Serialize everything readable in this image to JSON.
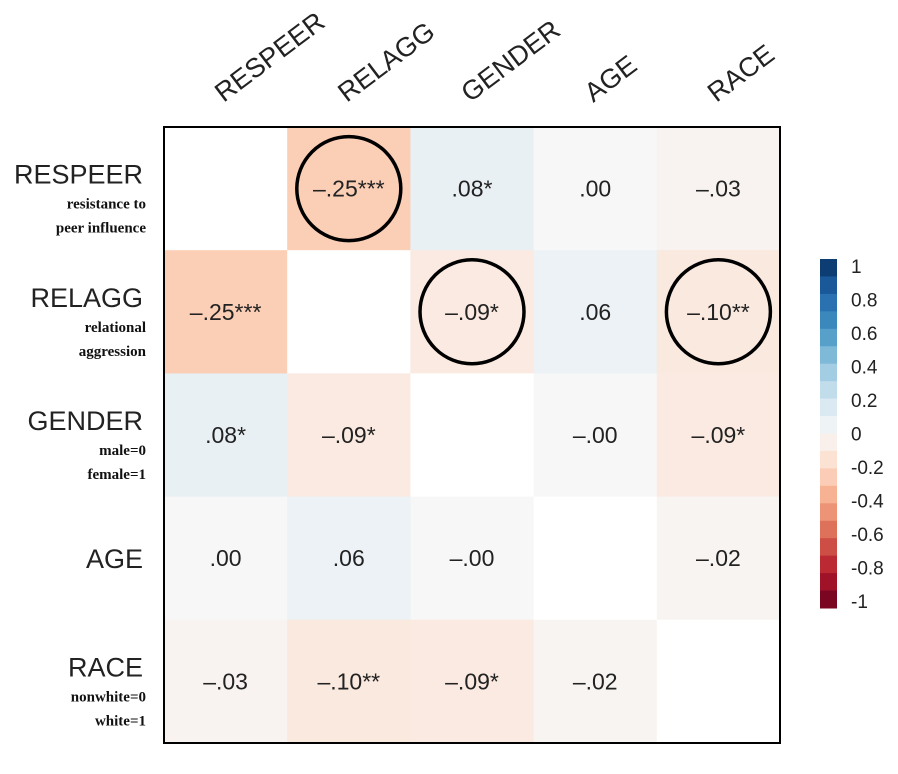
{
  "chart_data": {
    "type": "heatmap",
    "variables": [
      {
        "name": "RESPEER",
        "description": [
          "resistance to",
          "peer influence"
        ]
      },
      {
        "name": "RELAGG",
        "description": [
          "relational",
          "aggression"
        ]
      },
      {
        "name": "GENDER",
        "description": [
          "male=0",
          "female=1"
        ]
      },
      {
        "name": "AGE",
        "description": []
      },
      {
        "name": "RACE",
        "description": [
          "nonwhite=0",
          "white=1"
        ]
      }
    ],
    "values": [
      [
        null,
        -0.25,
        0.08,
        0.0,
        -0.03
      ],
      [
        -0.25,
        null,
        -0.09,
        0.06,
        -0.1
      ],
      [
        0.08,
        -0.09,
        null,
        -0.0,
        -0.09
      ],
      [
        0.0,
        0.06,
        -0.0,
        null,
        -0.02
      ],
      [
        -0.03,
        -0.1,
        -0.09,
        -0.02,
        null
      ]
    ],
    "labels": [
      [
        "",
        "–.25***",
        ".08*",
        ".00",
        "–.03"
      ],
      [
        "–.25***",
        "",
        "–.09*",
        ".06",
        "–.10**"
      ],
      [
        ".08*",
        "–.09*",
        "",
        "–.00",
        "–.09*"
      ],
      [
        ".00",
        ".06",
        "–.00",
        "",
        "–.02"
      ],
      [
        "–.03",
        "–.10**",
        "–.09*",
        "–.02",
        ""
      ]
    ],
    "circled": [
      [
        0,
        1
      ],
      [
        1,
        2
      ],
      [
        1,
        4
      ]
    ],
    "color_scale": {
      "range": [
        -1,
        1
      ],
      "ticks": [
        "1",
        "0.8",
        "0.6",
        "0.4",
        "0.2",
        "0",
        "-0.2",
        "-0.4",
        "-0.6",
        "-0.8",
        "-1"
      ],
      "colors": [
        "#053061",
        "#2166ac",
        "#4393c3",
        "#92c5de",
        "#d1e5f0",
        "#f7f7f7",
        "#fddbc7",
        "#f4a582",
        "#d6604d",
        "#b2182b",
        "#67001f"
      ]
    },
    "legend_position": "right"
  }
}
